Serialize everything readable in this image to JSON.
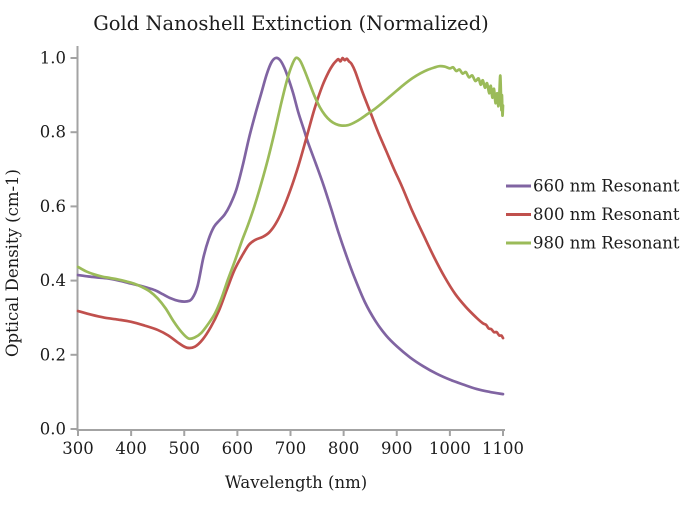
{
  "title": "Gold Nanoshell Extinction (Normalized)",
  "chart_data": {
    "type": "line",
    "title": "Gold Nanoshell Extinction (Normalized)",
    "xlabel": "Wavelength (nm)",
    "ylabel": "Optical Density (cm-1)",
    "xlim": [
      300,
      1100
    ],
    "ylim": [
      0.0,
      1.0
    ],
    "x_ticks": [
      300,
      400,
      500,
      600,
      700,
      800,
      900,
      1000,
      1100
    ],
    "y_ticks": [
      0.0,
      0.2,
      0.4,
      0.6,
      0.8,
      1.0
    ],
    "grid": false,
    "legend_position": "right",
    "axis_color": "#a3a3a3",
    "text_color": "#1c1c1c",
    "series": [
      {
        "name": "660 nm Resonant",
        "color": "#8064A2",
        "points": [
          [
            300,
            0.415
          ],
          [
            320,
            0.411
          ],
          [
            340,
            0.408
          ],
          [
            360,
            0.405
          ],
          [
            380,
            0.399
          ],
          [
            400,
            0.392
          ],
          [
            415,
            0.387
          ],
          [
            430,
            0.381
          ],
          [
            445,
            0.374
          ],
          [
            460,
            0.363
          ],
          [
            475,
            0.352
          ],
          [
            490,
            0.345
          ],
          [
            505,
            0.344
          ],
          [
            515,
            0.352
          ],
          [
            525,
            0.385
          ],
          [
            536,
            0.462
          ],
          [
            546,
            0.512
          ],
          [
            556,
            0.545
          ],
          [
            566,
            0.562
          ],
          [
            576,
            0.578
          ],
          [
            586,
            0.603
          ],
          [
            598,
            0.645
          ],
          [
            610,
            0.71
          ],
          [
            622,
            0.785
          ],
          [
            634,
            0.85
          ],
          [
            645,
            0.905
          ],
          [
            655,
            0.955
          ],
          [
            664,
            0.988
          ],
          [
            672,
            1.0
          ],
          [
            680,
            0.995
          ],
          [
            688,
            0.975
          ],
          [
            696,
            0.945
          ],
          [
            705,
            0.905
          ],
          [
            715,
            0.852
          ],
          [
            725,
            0.808
          ],
          [
            733,
            0.772
          ],
          [
            748,
            0.714
          ],
          [
            762,
            0.658
          ],
          [
            776,
            0.596
          ],
          [
            790,
            0.531
          ],
          [
            805,
            0.468
          ],
          [
            820,
            0.41
          ],
          [
            840,
            0.342
          ],
          [
            860,
            0.291
          ],
          [
            880,
            0.252
          ],
          [
            900,
            0.223
          ],
          [
            925,
            0.193
          ],
          [
            950,
            0.169
          ],
          [
            975,
            0.149
          ],
          [
            1000,
            0.133
          ],
          [
            1025,
            0.12
          ],
          [
            1050,
            0.108
          ],
          [
            1075,
            0.1
          ],
          [
            1100,
            0.094
          ]
        ]
      },
      {
        "name": "800 nm Resonant",
        "color": "#C0504D",
        "points": [
          [
            300,
            0.318
          ],
          [
            325,
            0.308
          ],
          [
            350,
            0.3
          ],
          [
            375,
            0.295
          ],
          [
            400,
            0.289
          ],
          [
            425,
            0.279
          ],
          [
            450,
            0.267
          ],
          [
            470,
            0.252
          ],
          [
            490,
            0.231
          ],
          [
            505,
            0.219
          ],
          [
            520,
            0.222
          ],
          [
            535,
            0.242
          ],
          [
            550,
            0.275
          ],
          [
            565,
            0.318
          ],
          [
            580,
            0.375
          ],
          [
            595,
            0.43
          ],
          [
            610,
            0.47
          ],
          [
            622,
            0.497
          ],
          [
            634,
            0.51
          ],
          [
            648,
            0.518
          ],
          [
            660,
            0.53
          ],
          [
            672,
            0.553
          ],
          [
            685,
            0.59
          ],
          [
            700,
            0.645
          ],
          [
            715,
            0.71
          ],
          [
            730,
            0.785
          ],
          [
            745,
            0.862
          ],
          [
            760,
            0.925
          ],
          [
            772,
            0.963
          ],
          [
            780,
            0.982
          ],
          [
            786,
            0.992
          ],
          [
            790,
            0.997
          ],
          [
            794,
            0.991
          ],
          [
            798,
            1.0
          ],
          [
            802,
            0.994
          ],
          [
            806,
            0.998
          ],
          [
            810,
            0.991
          ],
          [
            815,
            0.984
          ],
          [
            822,
            0.963
          ],
          [
            835,
            0.91
          ],
          [
            850,
            0.855
          ],
          [
            865,
            0.8
          ],
          [
            880,
            0.75
          ],
          [
            895,
            0.7
          ],
          [
            910,
            0.653
          ],
          [
            930,
            0.585
          ],
          [
            950,
            0.524
          ],
          [
            970,
            0.464
          ],
          [
            990,
            0.41
          ],
          [
            1010,
            0.364
          ],
          [
            1030,
            0.329
          ],
          [
            1050,
            0.3
          ],
          [
            1062,
            0.285
          ],
          [
            1068,
            0.281
          ],
          [
            1073,
            0.271
          ],
          [
            1078,
            0.269
          ],
          [
            1083,
            0.261
          ],
          [
            1088,
            0.261
          ],
          [
            1093,
            0.252
          ],
          [
            1097,
            0.252
          ],
          [
            1100,
            0.245
          ]
        ]
      },
      {
        "name": "980 nm Resonant",
        "color": "#9BBB59",
        "points": [
          [
            300,
            0.437
          ],
          [
            315,
            0.425
          ],
          [
            330,
            0.417
          ],
          [
            345,
            0.411
          ],
          [
            360,
            0.407
          ],
          [
            375,
            0.403
          ],
          [
            390,
            0.398
          ],
          [
            405,
            0.392
          ],
          [
            420,
            0.383
          ],
          [
            435,
            0.371
          ],
          [
            450,
            0.352
          ],
          [
            465,
            0.325
          ],
          [
            480,
            0.29
          ],
          [
            495,
            0.261
          ],
          [
            508,
            0.244
          ],
          [
            520,
            0.247
          ],
          [
            532,
            0.259
          ],
          [
            545,
            0.283
          ],
          [
            558,
            0.312
          ],
          [
            570,
            0.352
          ],
          [
            582,
            0.402
          ],
          [
            595,
            0.452
          ],
          [
            608,
            0.505
          ],
          [
            620,
            0.55
          ],
          [
            632,
            0.6
          ],
          [
            645,
            0.662
          ],
          [
            658,
            0.73
          ],
          [
            670,
            0.8
          ],
          [
            682,
            0.875
          ],
          [
            693,
            0.938
          ],
          [
            702,
            0.978
          ],
          [
            710,
            1.0
          ],
          [
            718,
            0.993
          ],
          [
            726,
            0.968
          ],
          [
            735,
            0.935
          ],
          [
            745,
            0.898
          ],
          [
            755,
            0.868
          ],
          [
            765,
            0.846
          ],
          [
            775,
            0.831
          ],
          [
            785,
            0.822
          ],
          [
            795,
            0.818
          ],
          [
            808,
            0.819
          ],
          [
            820,
            0.826
          ],
          [
            832,
            0.836
          ],
          [
            845,
            0.849
          ],
          [
            858,
            0.862
          ],
          [
            872,
            0.878
          ],
          [
            886,
            0.895
          ],
          [
            900,
            0.912
          ],
          [
            915,
            0.93
          ],
          [
            930,
            0.946
          ],
          [
            945,
            0.959
          ],
          [
            958,
            0.968
          ],
          [
            970,
            0.974
          ],
          [
            980,
            0.978
          ],
          [
            990,
            0.977
          ],
          [
            1000,
            0.972
          ],
          [
            1006,
            0.975
          ],
          [
            1012,
            0.965
          ],
          [
            1018,
            0.969
          ],
          [
            1024,
            0.958
          ],
          [
            1030,
            0.962
          ],
          [
            1036,
            0.948
          ],
          [
            1042,
            0.953
          ],
          [
            1048,
            0.938
          ],
          [
            1054,
            0.945
          ],
          [
            1058,
            0.928
          ],
          [
            1062,
            0.94
          ],
          [
            1066,
            0.92
          ],
          [
            1070,
            0.932
          ],
          [
            1074,
            0.905
          ],
          [
            1077,
            0.925
          ],
          [
            1080,
            0.893
          ],
          [
            1083,
            0.917
          ],
          [
            1086,
            0.878
          ],
          [
            1089,
            0.905
          ],
          [
            1091,
            0.87
          ],
          [
            1093,
            0.9
          ],
          [
            1095,
            0.952
          ],
          [
            1097,
            0.86
          ],
          [
            1098,
            0.9
          ],
          [
            1099,
            0.845
          ],
          [
            1100,
            0.872
          ]
        ]
      }
    ]
  }
}
